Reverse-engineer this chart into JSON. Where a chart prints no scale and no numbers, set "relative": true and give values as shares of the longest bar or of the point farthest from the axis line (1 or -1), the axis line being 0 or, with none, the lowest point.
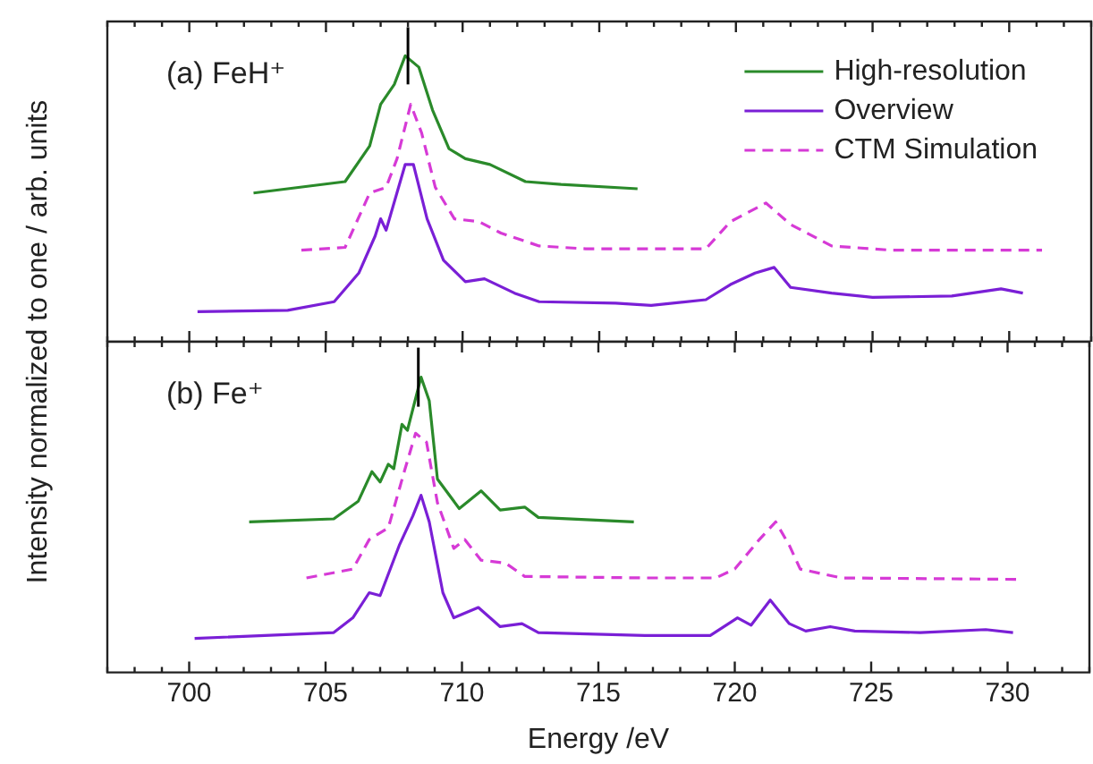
{
  "chart_data": [
    {
      "type": "line",
      "title": "(a) FeH⁺",
      "ylabel": "Intensity normalized to one / arb. units",
      "relative": true,
      "xlim": [
        697,
        733
      ],
      "xticks": [
        {
          "value": 697,
          "label": null
        },
        {
          "value": 698,
          "label": null
        },
        {
          "value": 699,
          "label": null
        },
        700,
        {
          "value": 701,
          "label": null
        },
        {
          "value": 702,
          "label": null
        },
        {
          "value": 703,
          "label": null
        },
        {
          "value": 704,
          "label": null
        },
        705,
        {
          "value": 706,
          "label": null
        },
        {
          "value": 707,
          "label": null
        },
        {
          "value": 708,
          "label": null
        },
        {
          "value": 709,
          "label": null
        },
        710,
        {
          "value": 711,
          "label": null
        },
        {
          "value": 712,
          "label": null
        },
        {
          "value": 713,
          "label": null
        },
        {
          "value": 714,
          "label": null
        },
        715,
        {
          "value": 716,
          "label": null
        },
        {
          "value": 717,
          "label": null
        },
        {
          "value": 718,
          "label": null
        },
        {
          "value": 719,
          "label": null
        },
        720,
        {
          "value": 721,
          "label": null
        },
        {
          "value": 722,
          "label": null
        },
        {
          "value": 723,
          "label": null
        },
        {
          "value": 724,
          "label": null
        },
        725,
        {
          "value": 726,
          "label": null
        },
        {
          "value": 727,
          "label": null
        },
        {
          "value": 728,
          "label": null
        },
        {
          "value": 729,
          "label": null
        },
        730,
        {
          "value": 731,
          "label": null
        },
        {
          "value": 732,
          "label": null
        },
        {
          "value": 733,
          "label": null
        }
      ],
      "tick_labels": false,
      "grid": false,
      "legend": "top right",
      "marker": "none",
      "ref_lines": [
        {
          "axis": "x",
          "value": 708.0,
          "color": "#000000"
        }
      ],
      "series": [
        {
          "name": "High-resolution",
          "color": "#2a8a2a",
          "line_style": "solid",
          "x": [
            702.35,
            705.7,
            706.6,
            707.0,
            707.5,
            707.9,
            708.4,
            708.9,
            709.5,
            710.1,
            711.0,
            712.3,
            713.6,
            716.4
          ],
          "values": [
            0.52,
            0.56,
            0.685,
            0.83,
            0.9,
            1.0,
            0.96,
            0.81,
            0.675,
            0.64,
            0.62,
            0.56,
            0.55,
            0.535
          ]
        },
        {
          "name": "Overview",
          "color": "#7a1fd6",
          "line_style": "solid",
          "x": [
            700.3,
            703.6,
            705.3,
            706.2,
            706.8,
            707.0,
            707.2,
            707.9,
            708.2,
            708.7,
            709.3,
            710.1,
            710.8,
            711.9,
            712.8,
            715.6,
            716.9,
            718.9,
            719.8,
            720.7,
            721.4,
            722.0,
            723.5,
            725.0,
            727.9,
            729.7,
            730.5
          ],
          "values": [
            0.105,
            0.11,
            0.14,
            0.24,
            0.37,
            0.43,
            0.39,
            0.62,
            0.62,
            0.43,
            0.285,
            0.21,
            0.22,
            0.17,
            0.14,
            0.135,
            0.127,
            0.147,
            0.2,
            0.24,
            0.26,
            0.19,
            0.17,
            0.155,
            0.16,
            0.185,
            0.17
          ]
        },
        {
          "name": "CTM Simulation",
          "color": "#d63ad6",
          "line_style": "dashed",
          "x": [
            704.1,
            705.7,
            706.6,
            707.2,
            707.6,
            708.1,
            708.5,
            709.0,
            709.7,
            710.6,
            711.4,
            712.8,
            714.5,
            718.9,
            719.8,
            721.1,
            722.0,
            723.5,
            725.7,
            731.2
          ],
          "values": [
            0.32,
            0.33,
            0.52,
            0.54,
            0.64,
            0.83,
            0.73,
            0.54,
            0.43,
            0.42,
            0.38,
            0.335,
            0.325,
            0.325,
            0.42,
            0.485,
            0.41,
            0.335,
            0.32,
            0.32
          ]
        }
      ]
    },
    {
      "type": "line",
      "title": "(b) Fe⁺",
      "xlabel": "Energy /eV",
      "relative": true,
      "xlim": [
        697,
        733
      ],
      "xticks": [
        {
          "value": 697,
          "label": null
        },
        {
          "value": 698,
          "label": null
        },
        {
          "value": 699,
          "label": null
        },
        700,
        {
          "value": 701,
          "label": null
        },
        {
          "value": 702,
          "label": null
        },
        {
          "value": 703,
          "label": null
        },
        {
          "value": 704,
          "label": null
        },
        705,
        {
          "value": 706,
          "label": null
        },
        {
          "value": 707,
          "label": null
        },
        {
          "value": 708,
          "label": null
        },
        {
          "value": 709,
          "label": null
        },
        710,
        {
          "value": 711,
          "label": null
        },
        {
          "value": 712,
          "label": null
        },
        {
          "value": 713,
          "label": null
        },
        {
          "value": 714,
          "label": null
        },
        715,
        {
          "value": 716,
          "label": null
        },
        {
          "value": 717,
          "label": null
        },
        {
          "value": 718,
          "label": null
        },
        {
          "value": 719,
          "label": null
        },
        720,
        {
          "value": 721,
          "label": null
        },
        {
          "value": 722,
          "label": null
        },
        {
          "value": 723,
          "label": null
        },
        {
          "value": 724,
          "label": null
        },
        725,
        {
          "value": 726,
          "label": null
        },
        {
          "value": 727,
          "label": null
        },
        {
          "value": 728,
          "label": null
        },
        {
          "value": 729,
          "label": null
        },
        730,
        {
          "value": 731,
          "label": null
        },
        {
          "value": 732,
          "label": null
        },
        {
          "value": 733,
          "label": null
        }
      ],
      "tick_labels": "x",
      "grid": false,
      "marker": "none",
      "ref_lines": [
        {
          "axis": "x",
          "value": 708.4,
          "color": "#000000"
        }
      ],
      "series": [
        {
          "color": "#2a8a2a",
          "line_style": "solid",
          "x": [
            702.2,
            705.3,
            706.2,
            706.7,
            707.0,
            707.3,
            707.5,
            707.8,
            708.0,
            708.5,
            708.8,
            709.1,
            709.9,
            710.7,
            711.4,
            712.3,
            712.8,
            716.3
          ],
          "values": [
            0.51,
            0.52,
            0.58,
            0.68,
            0.645,
            0.705,
            0.69,
            0.84,
            0.82,
            1.0,
            0.92,
            0.655,
            0.555,
            0.615,
            0.55,
            0.56,
            0.525,
            0.51
          ]
        },
        {
          "color": "#7a1fd6",
          "line_style": "solid",
          "x": [
            700.2,
            705.3,
            706.0,
            706.6,
            707.0,
            707.7,
            708.2,
            708.5,
            708.8,
            709.3,
            709.7,
            710.6,
            711.4,
            712.2,
            712.8,
            716.7,
            719.1,
            720.1,
            720.6,
            721.3,
            722.0,
            722.6,
            723.5,
            724.4,
            726.8,
            729.2,
            730.2
          ],
          "values": [
            0.115,
            0.135,
            0.185,
            0.27,
            0.26,
            0.43,
            0.53,
            0.6,
            0.51,
            0.27,
            0.185,
            0.22,
            0.155,
            0.165,
            0.135,
            0.125,
            0.125,
            0.185,
            0.16,
            0.245,
            0.165,
            0.14,
            0.155,
            0.14,
            0.135,
            0.145,
            0.135
          ]
        },
        {
          "color": "#d63ad6",
          "line_style": "dashed",
          "x": [
            704.3,
            706.0,
            706.6,
            707.3,
            707.9,
            708.3,
            708.7,
            709.1,
            709.7,
            710.1,
            710.7,
            711.6,
            712.3,
            716.7,
            719.3,
            720.0,
            720.9,
            721.5,
            722.0,
            722.4,
            723.9,
            730.5
          ],
          "values": [
            0.32,
            0.35,
            0.45,
            0.49,
            0.685,
            0.81,
            0.78,
            0.575,
            0.42,
            0.45,
            0.38,
            0.37,
            0.325,
            0.32,
            0.32,
            0.35,
            0.45,
            0.51,
            0.43,
            0.35,
            0.32,
            0.315
          ]
        }
      ]
    }
  ]
}
